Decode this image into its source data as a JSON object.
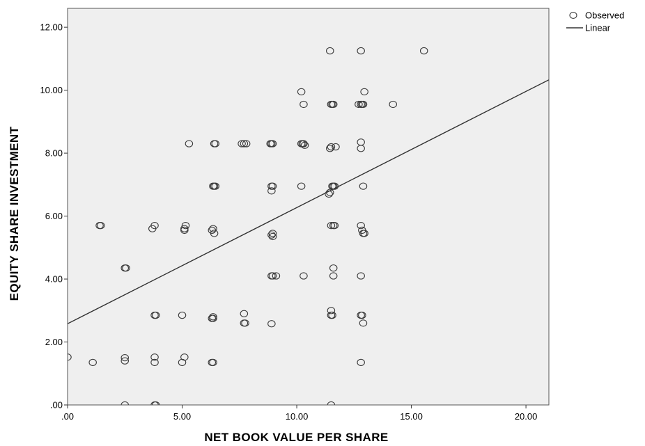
{
  "chart_data": {
    "type": "scatter",
    "title": "",
    "xlabel": "NET BOOK VALUE PER SHARE",
    "ylabel": "EQUITY SHARE INVESTMENT",
    "xlim": [
      0,
      21
    ],
    "ylim": [
      0,
      12.6
    ],
    "x_ticks": [
      0,
      5,
      10,
      15,
      20
    ],
    "x_tick_labels": [
      ".00",
      "5.00",
      "10.00",
      "15.00",
      "20.00"
    ],
    "y_ticks": [
      0,
      2,
      4,
      6,
      8,
      10,
      12
    ],
    "y_tick_labels": [
      ".00",
      "2.00",
      "4.00",
      "6.00",
      "8.00",
      "10.00",
      "12.00"
    ],
    "grid": false,
    "plot_background": "#efefef",
    "marker_color": "#3a3a3a",
    "line_color": "#333333",
    "legend": {
      "placement": "top-right, outside plot",
      "entries": [
        {
          "label": "Observed",
          "symbol": "circle"
        },
        {
          "label": "Linear",
          "symbol": "line"
        }
      ]
    },
    "series": [
      {
        "name": "Observed",
        "kind": "scatter",
        "points": [
          [
            0.0,
            1.52
          ],
          [
            1.1,
            1.35
          ],
          [
            2.5,
            1.5
          ],
          [
            2.5,
            1.4
          ],
          [
            3.8,
            1.52
          ],
          [
            3.8,
            1.35
          ],
          [
            5.0,
            1.35
          ],
          [
            5.1,
            1.52
          ],
          [
            6.3,
            1.35
          ],
          [
            6.35,
            1.35
          ],
          [
            12.8,
            1.35
          ],
          [
            2.5,
            0.0
          ],
          [
            3.8,
            0.0
          ],
          [
            3.85,
            0.0
          ],
          [
            11.5,
            0.0
          ],
          [
            3.8,
            2.85
          ],
          [
            3.85,
            2.85
          ],
          [
            5.0,
            2.85
          ],
          [
            6.3,
            2.75
          ],
          [
            6.35,
            2.8
          ],
          [
            6.35,
            2.75
          ],
          [
            7.7,
            2.9
          ],
          [
            7.7,
            2.6
          ],
          [
            7.75,
            2.6
          ],
          [
            8.9,
            2.58
          ],
          [
            11.5,
            3.0
          ],
          [
            11.5,
            2.85
          ],
          [
            11.55,
            2.85
          ],
          [
            12.8,
            2.85
          ],
          [
            12.85,
            2.85
          ],
          [
            12.9,
            2.6
          ],
          [
            2.5,
            4.35
          ],
          [
            2.55,
            4.35
          ],
          [
            8.9,
            4.1
          ],
          [
            8.95,
            4.1
          ],
          [
            9.1,
            4.1
          ],
          [
            10.3,
            4.1
          ],
          [
            11.6,
            4.1
          ],
          [
            11.6,
            4.35
          ],
          [
            12.8,
            4.1
          ],
          [
            1.4,
            5.7
          ],
          [
            1.45,
            5.7
          ],
          [
            3.7,
            5.6
          ],
          [
            3.8,
            5.7
          ],
          [
            5.1,
            5.6
          ],
          [
            5.1,
            5.55
          ],
          [
            5.15,
            5.7
          ],
          [
            6.3,
            5.55
          ],
          [
            6.35,
            5.6
          ],
          [
            6.4,
            5.45
          ],
          [
            8.9,
            5.4
          ],
          [
            8.95,
            5.35
          ],
          [
            8.95,
            5.45
          ],
          [
            11.5,
            5.7
          ],
          [
            11.6,
            5.7
          ],
          [
            11.65,
            5.7
          ],
          [
            12.8,
            5.7
          ],
          [
            12.9,
            5.45
          ],
          [
            12.95,
            5.45
          ],
          [
            12.85,
            5.55
          ],
          [
            6.35,
            6.95
          ],
          [
            6.4,
            6.95
          ],
          [
            6.45,
            6.95
          ],
          [
            8.9,
            6.95
          ],
          [
            8.95,
            6.95
          ],
          [
            8.9,
            6.8
          ],
          [
            10.2,
            6.95
          ],
          [
            11.4,
            6.7
          ],
          [
            11.45,
            6.75
          ],
          [
            11.55,
            6.95
          ],
          [
            11.6,
            6.95
          ],
          [
            11.65,
            6.95
          ],
          [
            12.9,
            6.95
          ],
          [
            5.3,
            8.3
          ],
          [
            6.4,
            8.3
          ],
          [
            6.45,
            8.3
          ],
          [
            7.6,
            8.3
          ],
          [
            7.7,
            8.3
          ],
          [
            7.8,
            8.3
          ],
          [
            8.85,
            8.3
          ],
          [
            8.9,
            8.3
          ],
          [
            8.95,
            8.3
          ],
          [
            10.2,
            8.3
          ],
          [
            10.25,
            8.3
          ],
          [
            10.3,
            8.3
          ],
          [
            10.35,
            8.25
          ],
          [
            11.45,
            8.15
          ],
          [
            11.5,
            8.2
          ],
          [
            11.7,
            8.2
          ],
          [
            12.8,
            8.15
          ],
          [
            12.8,
            8.35
          ],
          [
            10.2,
            9.95
          ],
          [
            10.3,
            9.55
          ],
          [
            11.5,
            9.55
          ],
          [
            11.55,
            9.55
          ],
          [
            11.6,
            9.55
          ],
          [
            12.7,
            9.55
          ],
          [
            12.8,
            9.55
          ],
          [
            12.85,
            9.55
          ],
          [
            12.9,
            9.55
          ],
          [
            12.95,
            9.95
          ],
          [
            14.2,
            9.55
          ],
          [
            11.45,
            11.25
          ],
          [
            12.8,
            11.25
          ],
          [
            15.55,
            11.25
          ]
        ]
      },
      {
        "name": "Linear",
        "kind": "line",
        "points": [
          [
            0,
            2.58
          ],
          [
            21,
            10.33
          ]
        ]
      }
    ]
  }
}
